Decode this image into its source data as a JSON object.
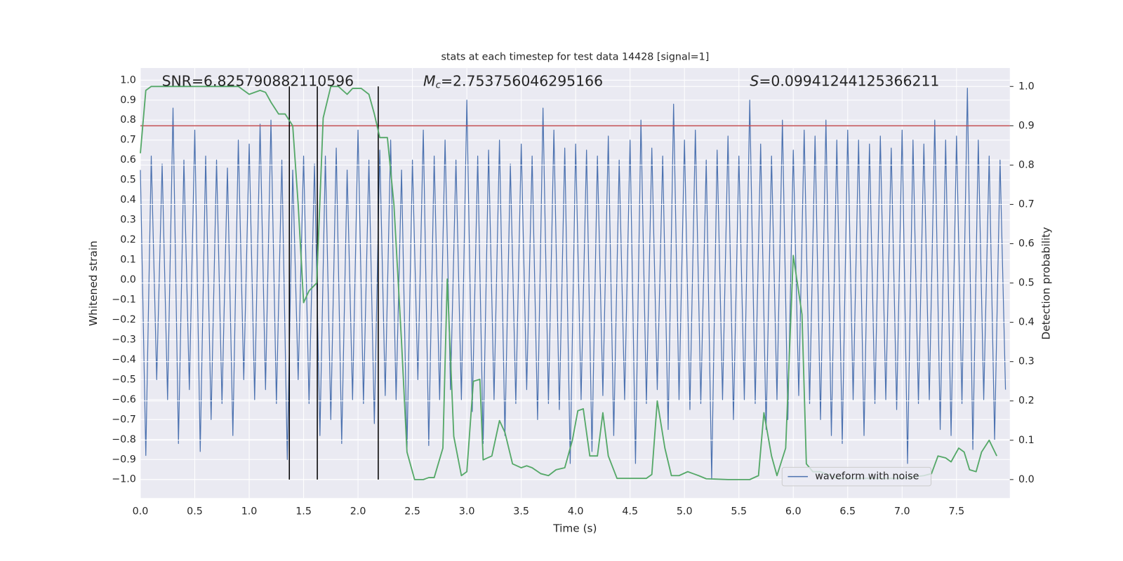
{
  "chart_data": {
    "type": "line",
    "title": "stats at each timestep for test data 14428 [signal=1]",
    "xlabel": "Time (s)",
    "ylabel": "Whitened strain",
    "y2label": "Detection probability",
    "annotations": [
      {
        "text": "SNR=6.825790882110596"
      },
      {
        "symbol": "M",
        "subscript": "c",
        "text": "=2.753756046295166"
      },
      {
        "symbol": "S",
        "text": "=0.09941244125366211"
      }
    ],
    "xlim": [
      0,
      7.99
    ],
    "ylim": [
      -1.093,
      1.061
    ],
    "y2lim": [
      -0.047,
      1.047
    ],
    "xticks": [
      {
        "value": 0,
        "label": "0.0"
      },
      0.5,
      {
        "value": 1,
        "label": "1.0"
      },
      1.5,
      {
        "value": 2,
        "label": "2.0"
      },
      2.5,
      {
        "value": 3,
        "label": "3.0"
      },
      3.5,
      {
        "value": 4,
        "label": "4.0"
      },
      4.5,
      {
        "value": 5,
        "label": "5.0"
      },
      5.5,
      {
        "value": 6,
        "label": "6.0"
      },
      6.5,
      {
        "value": 7,
        "label": "7.0"
      },
      7.5
    ],
    "yticks": [
      {
        "value": -1,
        "label": "−1.0"
      },
      {
        "value": -0.9,
        "label": "−0.9"
      },
      {
        "value": -0.8,
        "label": "−0.8"
      },
      {
        "value": -0.7,
        "label": "−0.7"
      },
      {
        "value": -0.6,
        "label": "−0.6"
      },
      {
        "value": -0.5,
        "label": "−0.5"
      },
      {
        "value": -0.4,
        "label": "−0.4"
      },
      {
        "value": -0.3,
        "label": "−0.3"
      },
      {
        "value": -0.2,
        "label": "−0.2"
      },
      {
        "value": -0.1,
        "label": "−0.1"
      },
      {
        "value": 0,
        "label": "0.0"
      },
      0.1,
      0.2,
      0.3,
      0.4,
      0.5,
      0.6,
      0.7,
      0.8,
      0.9,
      {
        "value": 1,
        "label": "1.0"
      }
    ],
    "y2ticks": [
      {
        "value": 0,
        "label": "0.0"
      },
      0.1,
      0.2,
      0.3,
      0.4,
      0.5,
      0.6,
      0.7,
      0.8,
      0.9,
      {
        "value": 1,
        "label": "1.0"
      }
    ],
    "grid": true,
    "legend": "lower right",
    "hline": {
      "value": 0.9,
      "axis": "y2",
      "color": "#c44e52"
    },
    "vlines": {
      "x": [
        1.369,
        1.626,
        2.186
      ],
      "ymin": 0,
      "ymax": 1,
      "axis": "y2",
      "color": "#000000"
    },
    "series": [
      {
        "name": "waveform with noise",
        "color": "#4c72b0",
        "x": [
          0,
          0.05,
          0.1,
          0.15,
          0.2,
          0.25,
          0.3,
          0.35,
          0.4,
          0.45,
          0.5,
          0.55,
          0.6,
          0.65,
          0.7,
          0.75,
          0.8,
          0.85,
          0.9,
          0.95,
          1,
          1.05,
          1.1,
          1.15,
          1.2,
          1.25,
          1.3,
          1.35,
          1.4,
          1.45,
          1.5,
          1.55,
          1.6,
          1.65,
          1.7,
          1.75,
          1.8,
          1.85,
          1.9,
          1.95,
          2,
          2.05,
          2.1,
          2.15,
          2.2,
          2.25,
          2.3,
          2.35,
          2.4,
          2.45,
          2.5,
          2.55,
          2.6,
          2.65,
          2.7,
          2.75,
          2.8,
          2.85,
          2.9,
          2.95,
          3,
          3.05,
          3.1,
          3.15,
          3.2,
          3.25,
          3.3,
          3.35,
          3.4,
          3.45,
          3.5,
          3.55,
          3.6,
          3.65,
          3.7,
          3.75,
          3.8,
          3.85,
          3.9,
          3.95,
          4,
          4.05,
          4.1,
          4.15,
          4.2,
          4.25,
          4.3,
          4.35,
          4.4,
          4.45,
          4.5,
          4.55,
          4.6,
          4.65,
          4.7,
          4.75,
          4.8,
          4.85,
          4.9,
          4.95,
          5,
          5.05,
          5.1,
          5.15,
          5.2,
          5.25,
          5.3,
          5.35,
          5.4,
          5.45,
          5.5,
          5.55,
          5.6,
          5.65,
          5.7,
          5.75,
          5.8,
          5.85,
          5.9,
          5.95,
          6,
          6.05,
          6.1,
          6.15,
          6.2,
          6.25,
          6.3,
          6.35,
          6.4,
          6.45,
          6.5,
          6.55,
          6.6,
          6.65,
          6.7,
          6.75,
          6.8,
          6.85,
          6.9,
          6.95,
          7,
          7.05,
          7.1,
          7.15,
          7.2,
          7.25,
          7.3,
          7.35,
          7.4,
          7.45,
          7.5,
          7.55,
          7.6,
          7.65,
          7.7,
          7.75,
          7.8,
          7.85,
          7.9,
          7.95
        ],
        "values": [
          0.55,
          -0.88,
          0.62,
          -0.5,
          0.58,
          -0.6,
          0.86,
          -0.82,
          0.6,
          -0.55,
          0.75,
          -0.86,
          0.62,
          -0.7,
          0.6,
          -0.62,
          0.56,
          -0.78,
          0.7,
          -0.5,
          0.68,
          -0.6,
          0.78,
          -0.55,
          0.8,
          -0.62,
          0.6,
          -0.9,
          0.55,
          -0.5,
          0.62,
          -0.62,
          0.58,
          -0.78,
          0.62,
          -0.7,
          0.66,
          -0.82,
          0.55,
          -0.6,
          0.75,
          -0.62,
          0.6,
          -0.72,
          0.65,
          -0.58,
          0.7,
          -0.6,
          0.55,
          -0.85,
          0.6,
          -0.5,
          0.75,
          -0.83,
          0.62,
          -0.6,
          0.7,
          -0.55,
          0.6,
          -0.6,
          0.9,
          -0.66,
          0.62,
          -0.82,
          0.65,
          -0.6,
          0.7,
          -0.78,
          0.58,
          -0.62,
          0.68,
          -0.55,
          0.62,
          -0.7,
          0.86,
          -0.62,
          0.75,
          -0.65,
          0.66,
          -0.92,
          0.68,
          -0.6,
          0.65,
          -0.86,
          0.62,
          -0.58,
          0.72,
          -0.78,
          0.6,
          -0.6,
          0.7,
          -0.92,
          0.8,
          -0.62,
          0.66,
          -0.55,
          0.62,
          -0.75,
          0.88,
          -0.6,
          0.7,
          -0.65,
          0.75,
          -0.62,
          0.6,
          -1.0,
          0.65,
          -0.6,
          0.72,
          -0.7,
          0.62,
          -0.6,
          0.9,
          -0.62,
          0.68,
          -0.75,
          0.62,
          -0.6,
          0.8,
          -0.7,
          0.65,
          -0.58,
          0.75,
          -0.62,
          0.72,
          -0.7,
          0.8,
          -0.78,
          0.7,
          -0.82,
          0.75,
          -0.6,
          0.7,
          -0.78,
          0.68,
          -0.62,
          0.72,
          -0.6,
          0.66,
          -0.65,
          0.75,
          -0.92,
          0.7,
          -0.62,
          0.68,
          -0.6,
          0.8,
          -0.75,
          0.7,
          -0.78,
          0.72,
          -0.62,
          0.96,
          -0.85,
          0.7,
          -0.6,
          0.62,
          -0.8,
          0.6,
          -0.55
        ]
      },
      {
        "color": "#55a868",
        "axis": "y2",
        "x": [
          0,
          0.05,
          0.1,
          0.2,
          0.5,
          0.9,
          1.0,
          1.1,
          1.15,
          1.2,
          1.27,
          1.33,
          1.4,
          1.45,
          1.5,
          1.55,
          1.62,
          1.68,
          1.75,
          1.82,
          1.9,
          1.95,
          2.03,
          2.1,
          2.15,
          2.2,
          2.27,
          2.33,
          2.4,
          2.45,
          2.52,
          2.6,
          2.65,
          2.7,
          2.78,
          2.82,
          2.88,
          2.95,
          3.0,
          3.06,
          3.12,
          3.15,
          3.23,
          3.3,
          3.35,
          3.42,
          3.5,
          3.55,
          3.6,
          3.68,
          3.75,
          3.82,
          3.9,
          3.97,
          4.02,
          4.07,
          4.13,
          4.2,
          4.25,
          4.3,
          4.38,
          4.5,
          4.65,
          4.7,
          4.75,
          4.82,
          4.88,
          4.95,
          5.03,
          5.08,
          5.13,
          5.2,
          5.4,
          5.6,
          5.68,
          5.73,
          5.8,
          5.85,
          5.93,
          6.0,
          6.08,
          6.12,
          6.18,
          6.25,
          6.4,
          6.6,
          7.0,
          7.2,
          7.27,
          7.33,
          7.4,
          7.45,
          7.52,
          7.57,
          7.62,
          7.68,
          7.73,
          7.8,
          7.87
        ],
        "values": [
          0.83,
          0.99,
          1.0,
          1.0,
          1.0,
          1.0,
          0.98,
          0.99,
          0.985,
          0.96,
          0.93,
          0.93,
          0.9,
          0.7,
          0.45,
          0.48,
          0.5,
          0.92,
          1.0,
          1.0,
          0.98,
          0.995,
          0.995,
          0.98,
          0.93,
          0.87,
          0.87,
          0.7,
          0.35,
          0.07,
          0.0,
          0.0,
          0.005,
          0.005,
          0.08,
          0.51,
          0.11,
          0.01,
          0.02,
          0.25,
          0.255,
          0.05,
          0.06,
          0.15,
          0.12,
          0.04,
          0.03,
          0.035,
          0.03,
          0.015,
          0.01,
          0.025,
          0.03,
          0.1,
          0.175,
          0.18,
          0.06,
          0.06,
          0.17,
          0.06,
          0.003,
          0.003,
          0.003,
          0.013,
          0.2,
          0.08,
          0.01,
          0.01,
          0.02,
          0.015,
          0.01,
          0.002,
          0.0,
          0.0,
          0.01,
          0.17,
          0.06,
          0.01,
          0.08,
          0.57,
          0.42,
          0.04,
          0.02,
          0.02,
          0.003,
          0.003,
          0.003,
          0.01,
          0.015,
          0.06,
          0.055,
          0.045,
          0.08,
          0.07,
          0.025,
          0.02,
          0.07,
          0.1,
          0.06
        ]
      }
    ]
  }
}
